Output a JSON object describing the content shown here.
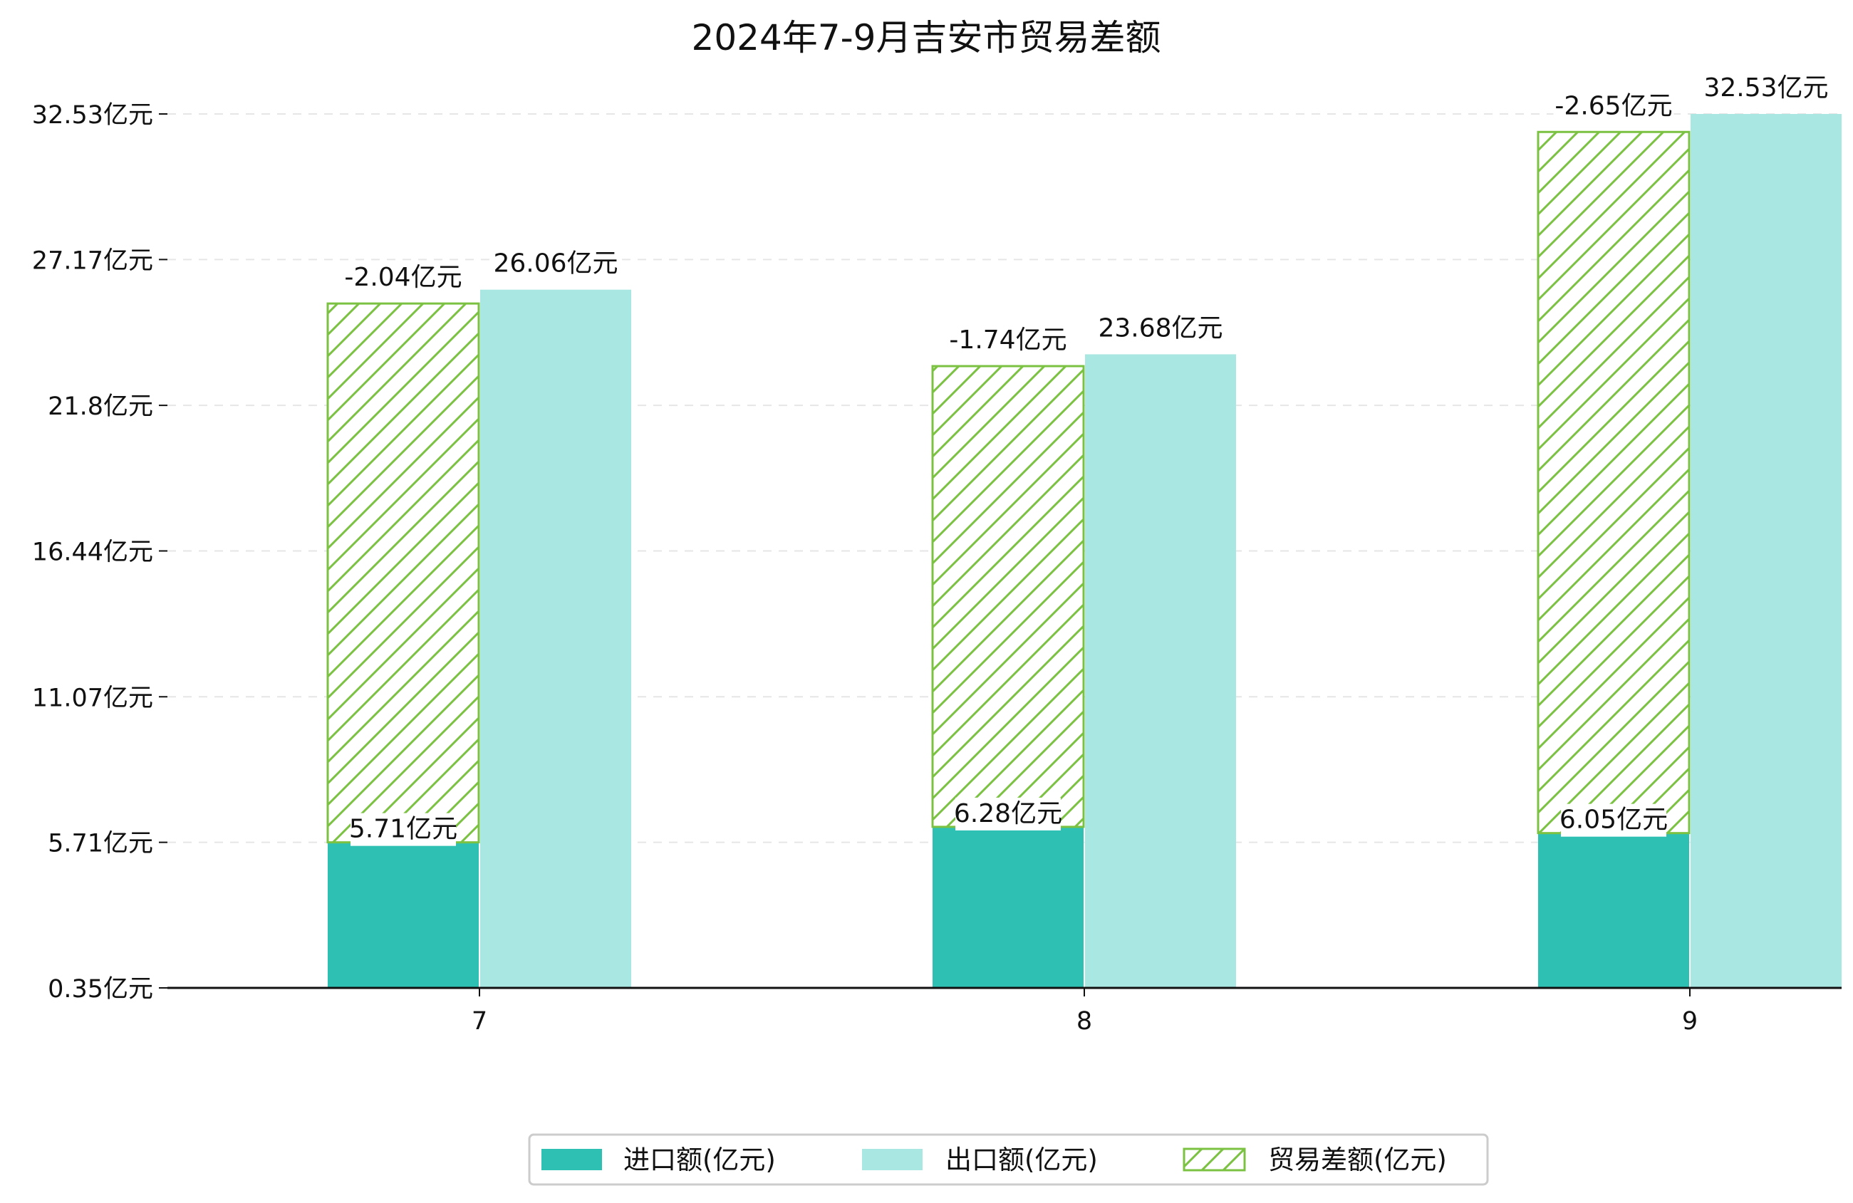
{
  "colors": {
    "import": "#2ec1b3",
    "export": "#a9e8e2",
    "balance": "#7cc242",
    "grid": "#e6e6e6",
    "axis": "#111111"
  },
  "chart_data": {
    "type": "bar",
    "title": "2024年7-9月吉安市贸易差额",
    "xlabel": "",
    "ylabel": "",
    "categories": [
      "7",
      "8",
      "9"
    ],
    "y_ticks": [
      "0.35亿元",
      "5.71亿元",
      "11.07亿元",
      "16.44亿元",
      "21.8亿元",
      "27.17亿元",
      "32.53亿元"
    ],
    "ylim": [
      0.35,
      33.6
    ],
    "grid": true,
    "legend_position": "bottom-center",
    "series": [
      {
        "name": "进口额(亿元)",
        "values": [
          5.71,
          6.28,
          6.05
        ],
        "labels": [
          "5.71亿元",
          "6.28亿元",
          "6.05亿元"
        ]
      },
      {
        "name": "出口额(亿元)",
        "values": [
          26.06,
          23.68,
          32.53
        ],
        "labels": [
          "26.06亿元",
          "23.68亿元",
          "32.53亿元"
        ]
      },
      {
        "name": "贸易差额(亿元)",
        "values": [
          -2.04,
          -1.74,
          -2.65
        ],
        "labels": [
          "-2.04亿元",
          "-1.74亿元",
          "-2.65亿元"
        ],
        "pattern": "hatched"
      }
    ]
  }
}
